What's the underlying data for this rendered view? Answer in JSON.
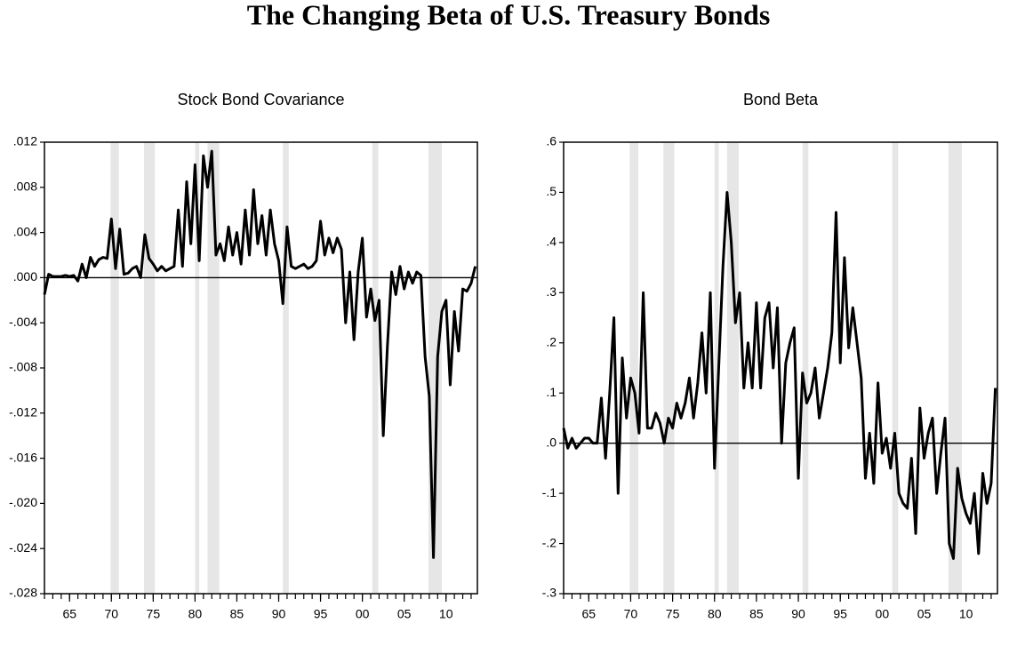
{
  "title": "The Changing Beta of U.S. Treasury Bonds",
  "chart_data": [
    {
      "type": "line",
      "title": "Stock Bond Covariance",
      "x": [
        1962,
        1962.5,
        1963,
        1963.5,
        1964,
        1964.5,
        1965,
        1965.5,
        1966,
        1966.5,
        1967,
        1967.5,
        1968,
        1968.5,
        1969,
        1969.5,
        1970,
        1970.5,
        1971,
        1971.5,
        1972,
        1972.5,
        1973,
        1973.5,
        1974,
        1974.5,
        1975,
        1975.5,
        1976,
        1976.5,
        1977,
        1977.5,
        1978,
        1978.5,
        1979,
        1979.5,
        1980,
        1980.5,
        1981,
        1981.5,
        1982,
        1982.5,
        1983,
        1983.5,
        1984,
        1984.5,
        1985,
        1985.5,
        1986,
        1986.5,
        1987,
        1987.5,
        1988,
        1988.5,
        1989,
        1989.5,
        1990,
        1990.5,
        1991,
        1991.5,
        1992,
        1992.5,
        1993,
        1993.5,
        1994,
        1994.5,
        1995,
        1995.5,
        1996,
        1996.5,
        1997,
        1997.5,
        1998,
        1998.5,
        1999,
        1999.5,
        2000,
        2000.5,
        2001,
        2001.5,
        2002,
        2002.5,
        2003,
        2003.5,
        2004,
        2004.5,
        2005,
        2005.5,
        2006,
        2006.5,
        2007,
        2007.5,
        2008,
        2008.5,
        2009,
        2009.5,
        2010,
        2010.5,
        2011,
        2011.5,
        2012,
        2012.5,
        2013,
        2013.5
      ],
      "series": [
        {
          "color": "#000000",
          "values": [
            -0.0015,
            0.0003,
            0.0001,
            0.0001,
            0.0001,
            0.0002,
            0.0001,
            0.0002,
            -0.0003,
            0.0012,
            0.0,
            0.0018,
            0.001,
            0.0016,
            0.0018,
            0.0017,
            0.0052,
            0.0008,
            0.0043,
            0.0003,
            0.0004,
            0.0008,
            0.001,
            0.0,
            0.0038,
            0.0017,
            0.0012,
            0.0006,
            0.001,
            0.0006,
            0.0008,
            0.001,
            0.006,
            0.001,
            0.0085,
            0.003,
            0.01,
            0.0015,
            0.0108,
            0.008,
            0.0112,
            0.002,
            0.003,
            0.0015,
            0.0045,
            0.002,
            0.004,
            0.0012,
            0.006,
            0.002,
            0.0078,
            0.003,
            0.0055,
            0.002,
            0.006,
            0.003,
            0.0015,
            -0.0023,
            0.0045,
            0.001,
            0.0008,
            0.001,
            0.0012,
            0.0008,
            0.001,
            0.0015,
            0.005,
            0.002,
            0.0035,
            0.0022,
            0.0035,
            0.0025,
            -0.004,
            0.0005,
            -0.0055,
            0.0005,
            0.0035,
            -0.0035,
            -0.001,
            -0.0038,
            -0.002,
            -0.014,
            -0.006,
            0.0005,
            -0.0015,
            0.001,
            -0.001,
            0.0005,
            -0.0005,
            0.0005,
            0.0002,
            -0.007,
            -0.0105,
            -0.0248,
            -0.007,
            -0.003,
            -0.002,
            -0.0095,
            -0.003,
            -0.0065,
            -0.001,
            -0.0012,
            -0.0005,
            0.001
          ]
        }
      ],
      "xlim": [
        1962,
        2013.75
      ],
      "xticks": [
        {
          "value": 1965,
          "label": "65"
        },
        {
          "value": 1970,
          "label": "70"
        },
        {
          "value": 1975,
          "label": "75"
        },
        {
          "value": 1980,
          "label": "80"
        },
        {
          "value": 1985,
          "label": "85"
        },
        {
          "value": 1990,
          "label": "90"
        },
        {
          "value": 1995,
          "label": "95"
        },
        {
          "value": 2000,
          "label": "00"
        },
        {
          "value": 2005,
          "label": "05"
        },
        {
          "value": 2010,
          "label": "10"
        }
      ],
      "xminorticks": [
        1962,
        1963,
        1964,
        1965,
        1966,
        1967,
        1968,
        1969,
        1970,
        1971,
        1972,
        1973,
        1974,
        1975,
        1976,
        1977,
        1978,
        1979,
        1980,
        1981,
        1982,
        1983,
        1984,
        1985,
        1986,
        1987,
        1988,
        1989,
        1990,
        1991,
        1992,
        1993,
        1994,
        1995,
        1996,
        1997,
        1998,
        1999,
        2000,
        2001,
        2002,
        2003,
        2004,
        2005,
        2006,
        2007,
        2008,
        2009,
        2010,
        2011,
        2012,
        2013
      ],
      "ylim": [
        -0.028,
        0.012
      ],
      "yticks": [
        {
          "value": 0.012,
          "label": ".012"
        },
        {
          "value": 0.008,
          "label": ".008"
        },
        {
          "value": 0.004,
          "label": ".004"
        },
        {
          "value": 0,
          "label": ".000"
        },
        {
          "value": -0.004,
          "label": "-.004"
        },
        {
          "value": -0.008,
          "label": "-.008"
        },
        {
          "value": -0.012,
          "label": "-.012"
        },
        {
          "value": -0.016,
          "label": "-.016"
        },
        {
          "value": -0.02,
          "label": "-.020"
        },
        {
          "value": -0.024,
          "label": "-.024"
        },
        {
          "value": -0.028,
          "label": "-.028"
        }
      ],
      "reference_line": 0,
      "shaded_periods": [
        [
          1969.9,
          1970.9
        ],
        [
          1973.9,
          1975.2
        ],
        [
          1980.0,
          1980.5
        ],
        [
          1981.5,
          1982.9
        ],
        [
          1990.5,
          1991.2
        ],
        [
          2001.2,
          2001.9
        ],
        [
          2007.9,
          2009.5
        ]
      ],
      "shade_color": "#e6e6e6"
    },
    {
      "type": "line",
      "title": "Bond Beta",
      "x": [
        1962,
        1962.5,
        1963,
        1963.5,
        1964,
        1964.5,
        1965,
        1965.5,
        1966,
        1966.5,
        1967,
        1967.5,
        1968,
        1968.5,
        1969,
        1969.5,
        1970,
        1970.5,
        1971,
        1971.5,
        1972,
        1972.5,
        1973,
        1973.5,
        1974,
        1974.5,
        1975,
        1975.5,
        1976,
        1976.5,
        1977,
        1977.5,
        1978,
        1978.5,
        1979,
        1979.5,
        1980,
        1980.5,
        1981,
        1981.5,
        1982,
        1982.5,
        1983,
        1983.5,
        1984,
        1984.5,
        1985,
        1985.5,
        1986,
        1986.5,
        1987,
        1987.5,
        1988,
        1988.5,
        1989,
        1989.5,
        1990,
        1990.5,
        1991,
        1991.5,
        1992,
        1992.5,
        1993,
        1993.5,
        1994,
        1994.5,
        1995,
        1995.5,
        1996,
        1996.5,
        1997,
        1997.5,
        1998,
        1998.5,
        1999,
        1999.5,
        2000,
        2000.5,
        2001,
        2001.5,
        2002,
        2002.5,
        2003,
        2003.5,
        2004,
        2004.5,
        2005,
        2005.5,
        2006,
        2006.5,
        2007,
        2007.5,
        2008,
        2008.5,
        2009,
        2009.5,
        2010,
        2010.5,
        2011,
        2011.5,
        2012,
        2012.5,
        2013,
        2013.5
      ],
      "series": [
        {
          "color": "#000000",
          "values": [
            0.03,
            -0.01,
            0.01,
            -0.01,
            0.0,
            0.01,
            0.01,
            0.0,
            0.0,
            0.09,
            -0.03,
            0.1,
            0.25,
            -0.1,
            0.17,
            0.05,
            0.13,
            0.1,
            0.02,
            0.3,
            0.03,
            0.03,
            0.06,
            0.04,
            0.0,
            0.05,
            0.03,
            0.08,
            0.05,
            0.08,
            0.13,
            0.05,
            0.12,
            0.22,
            0.1,
            0.3,
            -0.05,
            0.15,
            0.35,
            0.5,
            0.4,
            0.24,
            0.3,
            0.11,
            0.2,
            0.11,
            0.28,
            0.11,
            0.25,
            0.28,
            0.15,
            0.27,
            0.0,
            0.16,
            0.2,
            0.23,
            -0.07,
            0.14,
            0.08,
            0.1,
            0.15,
            0.05,
            0.1,
            0.15,
            0.22,
            0.46,
            0.16,
            0.37,
            0.19,
            0.27,
            0.2,
            0.13,
            -0.07,
            0.02,
            -0.08,
            0.12,
            -0.02,
            0.01,
            -0.05,
            0.02,
            -0.1,
            -0.12,
            -0.13,
            -0.03,
            -0.18,
            0.07,
            -0.03,
            0.02,
            0.05,
            -0.1,
            -0.02,
            0.05,
            -0.2,
            -0.23,
            -0.05,
            -0.11,
            -0.14,
            -0.16,
            -0.1,
            -0.22,
            -0.06,
            -0.12,
            -0.08,
            0.11
          ]
        }
      ],
      "xlim": [
        1962,
        2013.75
      ],
      "xticks": [
        {
          "value": 1965,
          "label": "65"
        },
        {
          "value": 1970,
          "label": "70"
        },
        {
          "value": 1975,
          "label": "75"
        },
        {
          "value": 1980,
          "label": "80"
        },
        {
          "value": 1985,
          "label": "85"
        },
        {
          "value": 1990,
          "label": "90"
        },
        {
          "value": 1995,
          "label": "95"
        },
        {
          "value": 2000,
          "label": "00"
        },
        {
          "value": 2005,
          "label": "05"
        },
        {
          "value": 2010,
          "label": "10"
        }
      ],
      "xminorticks": [
        1962,
        1963,
        1964,
        1965,
        1966,
        1967,
        1968,
        1969,
        1970,
        1971,
        1972,
        1973,
        1974,
        1975,
        1976,
        1977,
        1978,
        1979,
        1980,
        1981,
        1982,
        1983,
        1984,
        1985,
        1986,
        1987,
        1988,
        1989,
        1990,
        1991,
        1992,
        1993,
        1994,
        1995,
        1996,
        1997,
        1998,
        1999,
        2000,
        2001,
        2002,
        2003,
        2004,
        2005,
        2006,
        2007,
        2008,
        2009,
        2010,
        2011,
        2012,
        2013
      ],
      "ylim": [
        -0.3,
        0.6
      ],
      "yticks": [
        {
          "value": 0.6,
          "label": ".6"
        },
        {
          "value": 0.5,
          "label": ".5"
        },
        {
          "value": 0.4,
          "label": ".4"
        },
        {
          "value": 0.3,
          "label": ".3"
        },
        {
          "value": 0.2,
          "label": ".2"
        },
        {
          "value": 0.1,
          "label": ".1"
        },
        {
          "value": 0,
          "label": ".0"
        },
        {
          "value": -0.1,
          "label": "-.1"
        },
        {
          "value": -0.2,
          "label": "-.2"
        },
        {
          "value": -0.3,
          "label": "-.3"
        }
      ],
      "reference_line": 0,
      "shaded_periods": [
        [
          1969.9,
          1970.9
        ],
        [
          1973.9,
          1975.2
        ],
        [
          1980.0,
          1980.5
        ],
        [
          1981.5,
          1982.9
        ],
        [
          1990.5,
          1991.2
        ],
        [
          2001.2,
          2001.9
        ],
        [
          2007.9,
          2009.5
        ]
      ],
      "shade_color": "#e6e6e6"
    }
  ]
}
